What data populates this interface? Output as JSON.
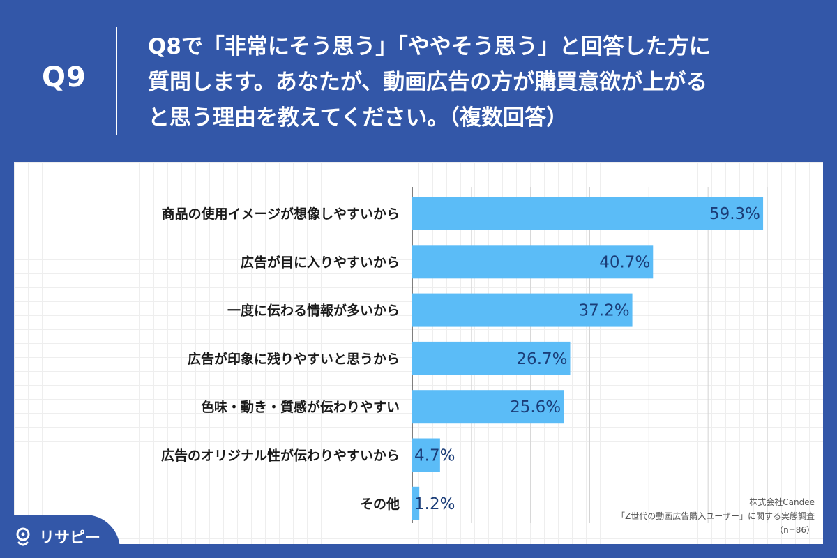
{
  "header": {
    "question_number": "Q9",
    "question_lines": [
      "Q8で「非常にそう思う」「ややそう思う」と回答した方に",
      "質問します。あなたが、動画広告の方が購買意欲が上がる",
      "と思う理由を教えてください。（複数回答）"
    ]
  },
  "chart_data": {
    "type": "bar",
    "orientation": "horizontal",
    "categories": [
      "商品の使用イメージが想像しやすいから",
      "広告が目に入りやすいから",
      "一度に伝わる情報が多いから",
      "広告が印象に残りやすいと思うから",
      "色味・動き・質感が伝わりやすい",
      "広告のオリジナル性が伝わりやすいから",
      "その他"
    ],
    "values": [
      59.3,
      40.7,
      37.2,
      26.7,
      25.6,
      4.7,
      1.2
    ],
    "value_labels": [
      "59.3%",
      "40.7%",
      "37.2%",
      "26.7%",
      "25.6%",
      "4.7%",
      "1.2%"
    ],
    "unit": "%",
    "xlim": [
      0,
      60
    ],
    "grid": true,
    "bar_color": "#5bbcf7",
    "value_label_color": "#1b3d78"
  },
  "source": {
    "company": "株式会社Candee",
    "survey": "「Z世代の動画広告購入ユーザー」に関する実態調査",
    "sample": "（n=86）"
  },
  "logo": {
    "text": "リサピー",
    "icon": "pin-icon"
  },
  "colors": {
    "background": "#3357a8",
    "panel": "#ffffff"
  }
}
